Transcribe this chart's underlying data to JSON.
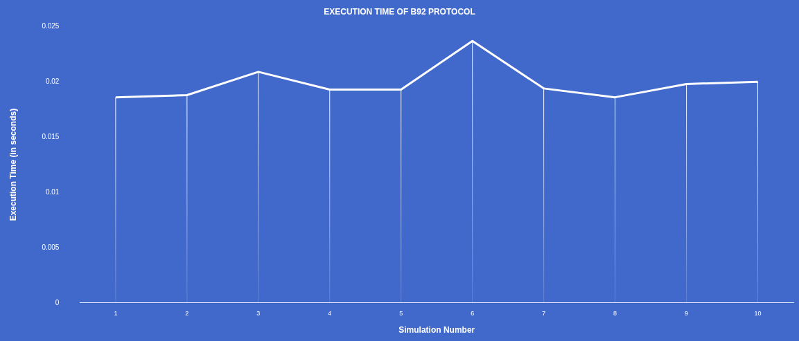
{
  "chart_data": {
    "type": "line",
    "title": "EXECUTION TIME OF B92 PROTOCOL",
    "xlabel": "Simulation Number",
    "ylabel": "Execution Time (in seconds)",
    "categories": [
      "1",
      "2",
      "3",
      "4",
      "5",
      "6",
      "7",
      "8",
      "9",
      "10"
    ],
    "series": [
      {
        "color": "#ffffff",
        "values": [
          0.0186,
          0.0188,
          0.0209,
          0.0193,
          0.0193,
          0.0237,
          0.0194,
          0.0186,
          0.0198,
          0.02
        ]
      }
    ],
    "ylim": [
      0,
      0.025
    ],
    "yticks": [
      0,
      0.005,
      0.01,
      0.015,
      0.02,
      0.025
    ],
    "grid": "x",
    "legend": false,
    "marker": "none",
    "line_style": "solid"
  }
}
